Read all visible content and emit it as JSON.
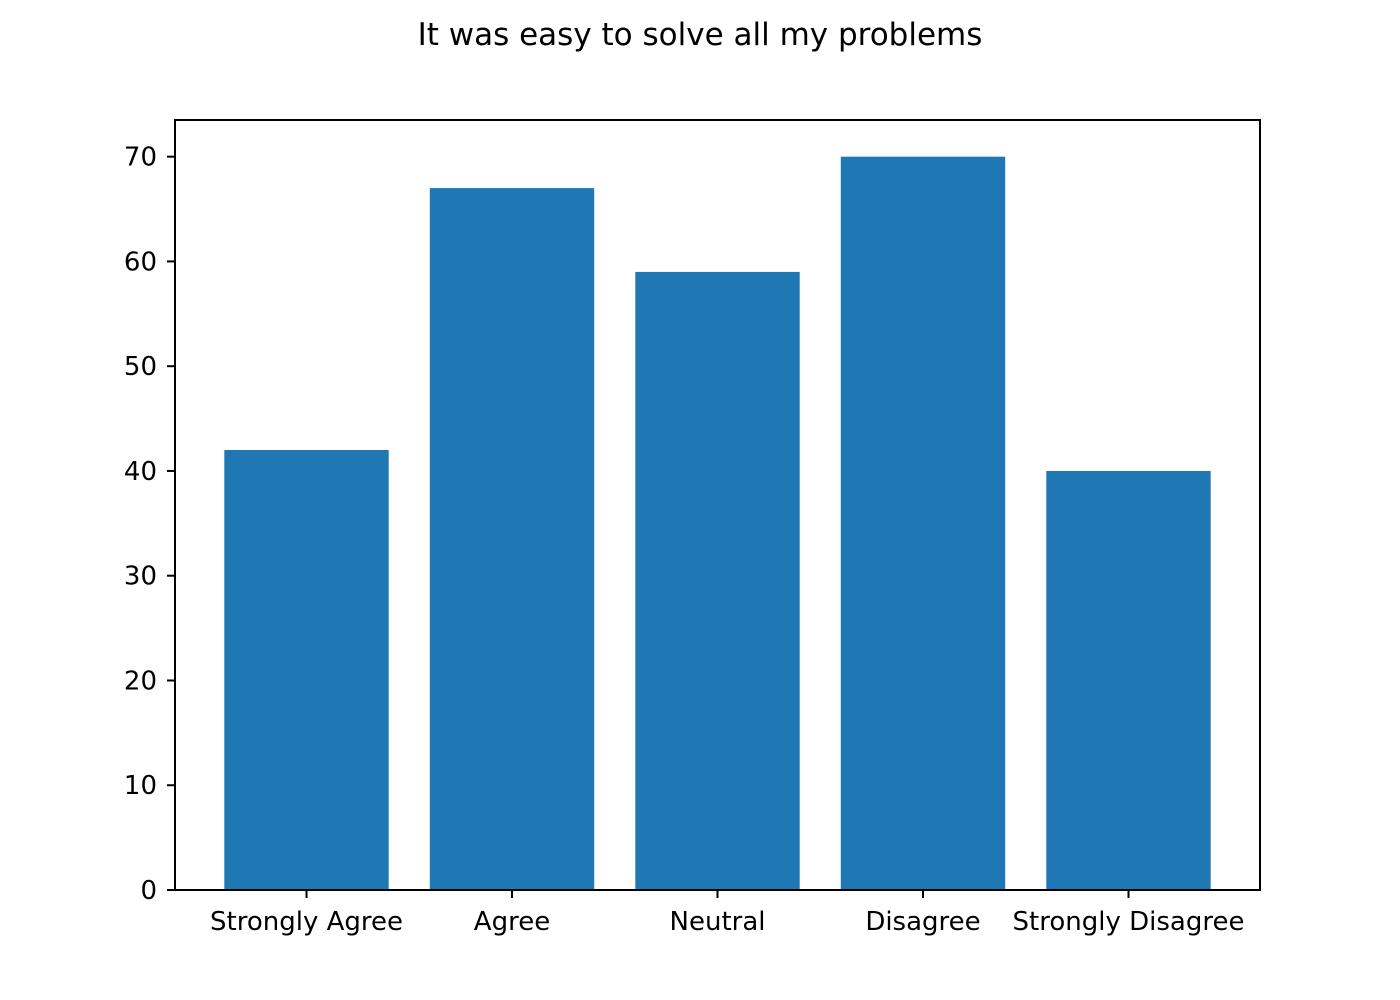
{
  "chart_data": {
    "type": "bar",
    "title": "It was easy to solve all my problems",
    "xlabel": "",
    "ylabel": "",
    "categories": [
      "Strongly Agree",
      "Agree",
      "Neutral",
      "Disagree",
      "Strongly Disagree"
    ],
    "values": [
      42,
      67,
      59,
      70,
      40
    ],
    "ylim": [
      0,
      73.5
    ],
    "yticks": [
      "0",
      "10",
      "20",
      "30",
      "40",
      "50",
      "60",
      "70"
    ],
    "grid": false,
    "legend": "none",
    "bar_color": "#1f77b4"
  }
}
